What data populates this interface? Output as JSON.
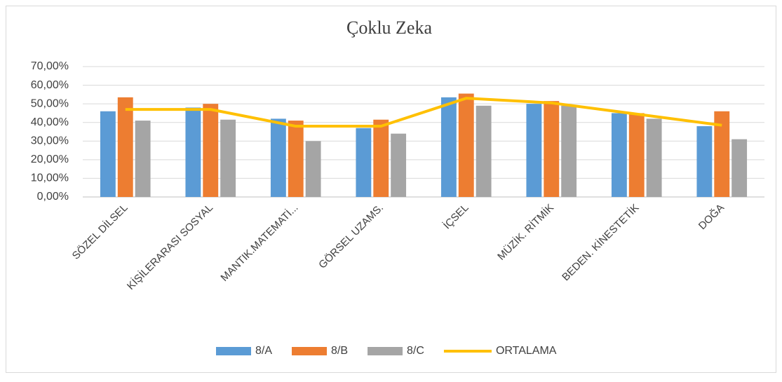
{
  "chart_data": {
    "type": "bar-line",
    "title": "Çoklu Zeka",
    "categories": [
      "SÖZEL DİLSEL",
      "KİŞİLERARASI SOSYAL",
      "MANTIK.MATEMATİ...",
      "GÖRSEL UZAMS.",
      "İÇSEL",
      "MÜZİK. RİTMİK",
      "BEDEN. KİNESTETİK",
      "DOĞA"
    ],
    "series": [
      {
        "name": "8/A",
        "color": "#5b9bd5",
        "type": "bar",
        "values": [
          46,
          48,
          42,
          37,
          53.5,
          50,
          45,
          38
        ]
      },
      {
        "name": "8/B",
        "color": "#ed7d31",
        "type": "bar",
        "values": [
          53.5,
          50,
          41,
          41.5,
          55.5,
          51.5,
          45,
          46
        ]
      },
      {
        "name": "8/C",
        "color": "#a5a5a5",
        "type": "bar",
        "values": [
          41,
          41.5,
          30,
          34,
          49,
          49,
          42,
          31
        ]
      },
      {
        "name": "ORTALAMA",
        "color": "#ffc000",
        "type": "line",
        "values": [
          47,
          47,
          38,
          38,
          53,
          50.5,
          44.5,
          38.5
        ]
      }
    ],
    "ylim": [
      0,
      70
    ],
    "yticks": [
      {
        "value": 0,
        "label": "0,00%"
      },
      {
        "value": 10,
        "label": "10,00%"
      },
      {
        "value": 20,
        "label": "20,00%"
      },
      {
        "value": 30,
        "label": "30,00%"
      },
      {
        "value": 40,
        "label": "40,00%"
      },
      {
        "value": 50,
        "label": "50,00%"
      },
      {
        "value": 60,
        "label": "60,00%"
      },
      {
        "value": 70,
        "label": "70,00%"
      }
    ],
    "grid": true,
    "legend": "bottom"
  }
}
